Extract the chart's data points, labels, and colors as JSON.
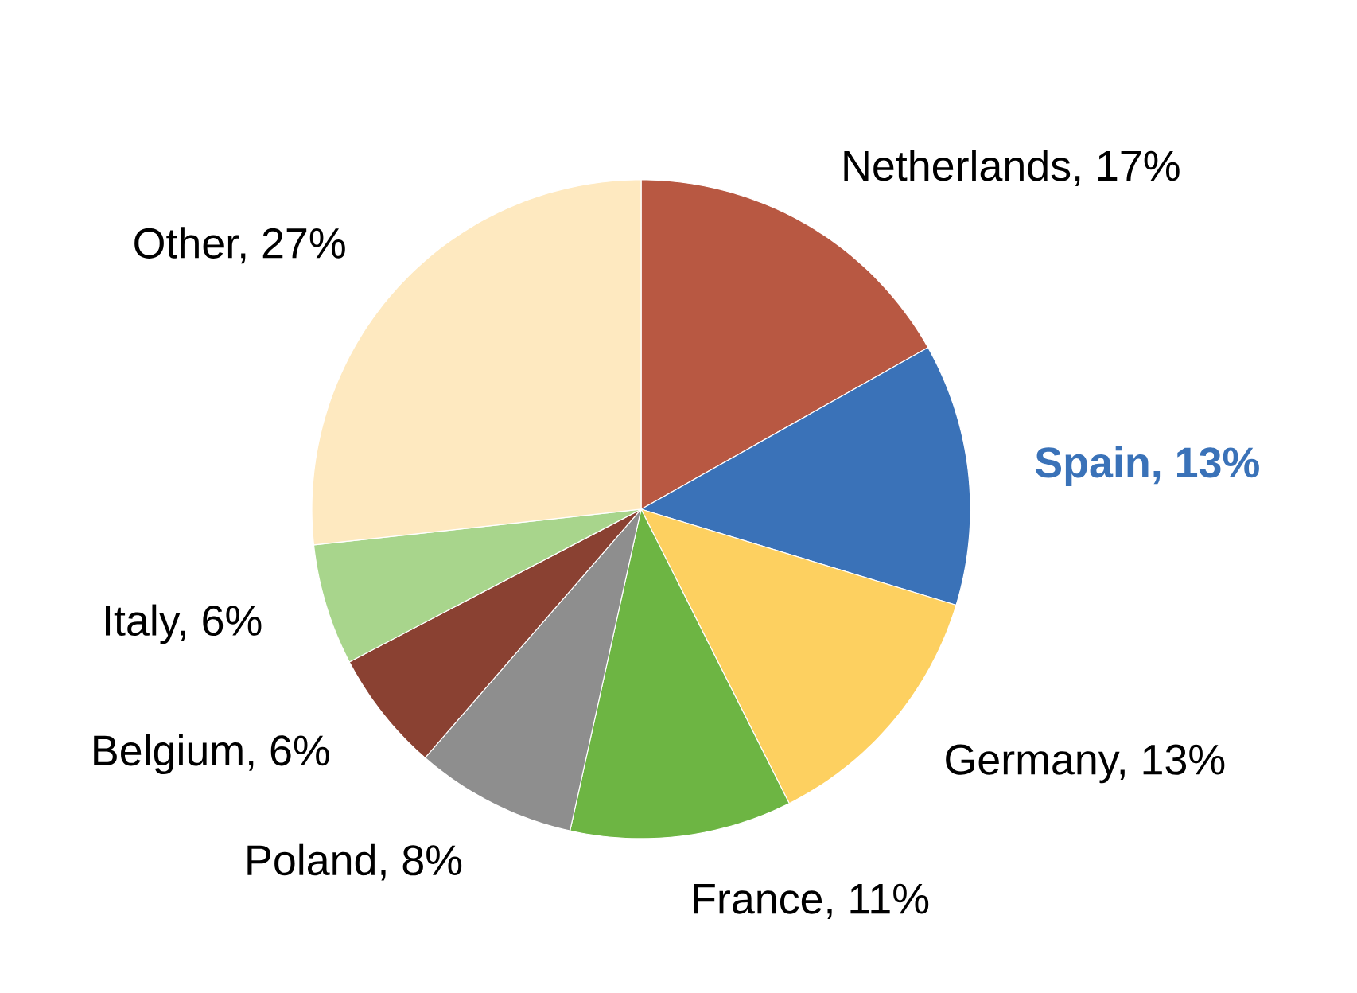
{
  "chart_data": {
    "type": "pie",
    "categories": [
      "Netherlands, 17%",
      "**Spain, 13%**",
      "Germany, 13%",
      "France, 11%",
      "Poland, 8%",
      "Belgium, 6%",
      "Italy, 6%",
      "Other, 27%"
    ],
    "values": [
      17,
      13,
      13,
      11,
      8,
      6,
      6,
      27
    ],
    "colors": [
      "#b85842",
      "#3a72b8",
      "#fdd060",
      "#6db543",
      "#8e8e8e",
      "#8a4132",
      "#a8d58c",
      "#fee9c0"
    ]
  }
}
